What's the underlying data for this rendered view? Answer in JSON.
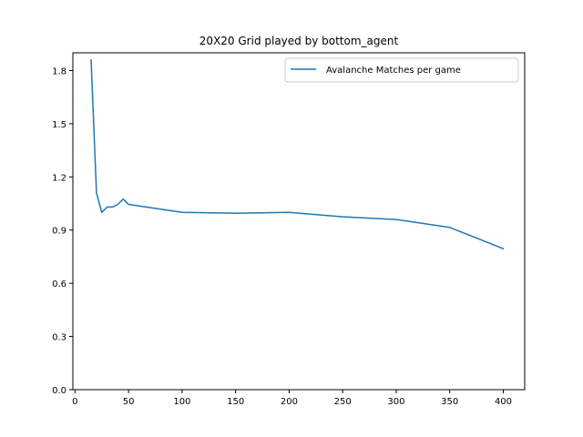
{
  "chart_data": {
    "type": "line",
    "title": "20X20 Grid played by bottom_agent",
    "xlabel": "",
    "ylabel": "",
    "xlim": [
      -2,
      420
    ],
    "ylim": [
      0.0,
      1.9
    ],
    "xticks": [
      0,
      50,
      100,
      150,
      200,
      250,
      300,
      350,
      400
    ],
    "xtick_labels": [
      "0",
      "50",
      "100",
      "150",
      "200",
      "250",
      "300",
      "350",
      "400"
    ],
    "yticks": [
      0.0,
      0.3,
      0.6,
      0.9,
      1.2,
      1.5,
      1.8
    ],
    "ytick_labels": [
      "0.0",
      "0.3",
      "0.6",
      "0.9",
      "1.2",
      "1.5",
      "1.8"
    ],
    "grid": false,
    "legend_position": "upper right",
    "series": [
      {
        "name": "Avalanche Matches per game",
        "color": "#1f77b4",
        "x": [
          15,
          20,
          25,
          30,
          35,
          40,
          45,
          50,
          100,
          150,
          200,
          250,
          300,
          350,
          400
        ],
        "y": [
          1.86,
          1.11,
          1.0,
          1.03,
          1.03,
          1.045,
          1.075,
          1.045,
          1.0,
          0.995,
          1.0,
          0.975,
          0.96,
          0.915,
          0.795
        ]
      }
    ]
  }
}
